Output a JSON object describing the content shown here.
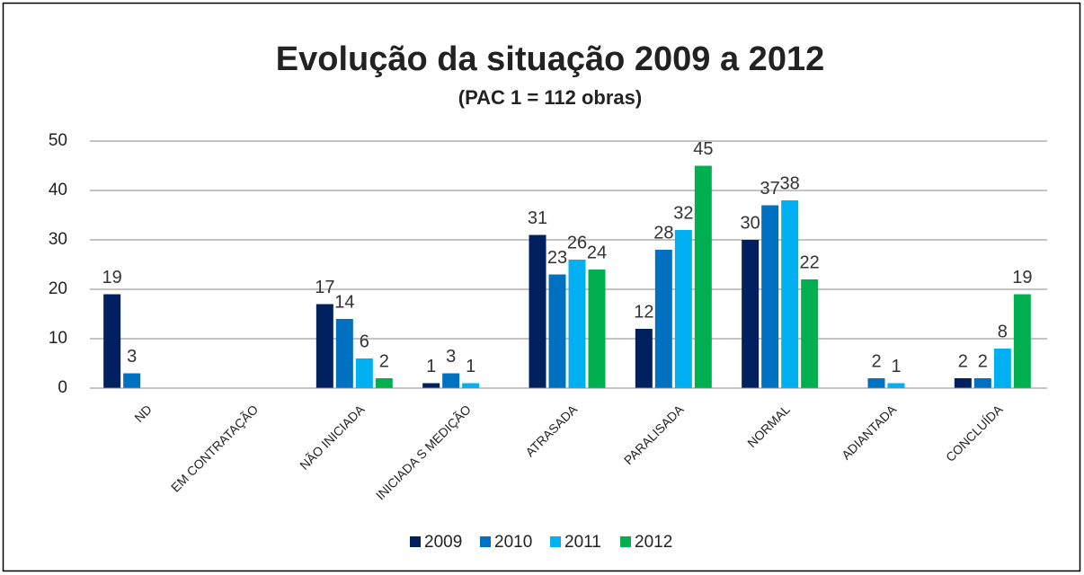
{
  "chart_data": {
    "type": "bar",
    "title": "Evolução da situação 2009 a 2012",
    "subtitle": "(PAC 1 = 112 obras)",
    "categories": [
      "ND",
      "EM CONTRATAÇÃO",
      "NÃO INICIADA",
      "INICIADA S MEDIÇÃO",
      "ATRASADA",
      "PARALISADA",
      "NORMAL",
      "ADIANTADA",
      "CONCLUÍDA"
    ],
    "series": [
      {
        "name": "2009",
        "color": "#002060",
        "values": [
          19,
          null,
          17,
          1,
          31,
          12,
          30,
          null,
          2
        ]
      },
      {
        "name": "2010",
        "color": "#0070c0",
        "values": [
          3,
          null,
          14,
          3,
          23,
          28,
          37,
          2,
          2
        ]
      },
      {
        "name": "2011",
        "color": "#00b0f0",
        "values": [
          null,
          null,
          6,
          1,
          26,
          32,
          38,
          1,
          8
        ]
      },
      {
        "name": "2012",
        "color": "#00b050",
        "values": [
          null,
          null,
          2,
          null,
          24,
          45,
          22,
          null,
          19
        ]
      }
    ],
    "ylim": [
      0,
      50
    ],
    "yticks": [
      0,
      10,
      20,
      30,
      40,
      50
    ],
    "grid": true,
    "legend": "bottom"
  }
}
